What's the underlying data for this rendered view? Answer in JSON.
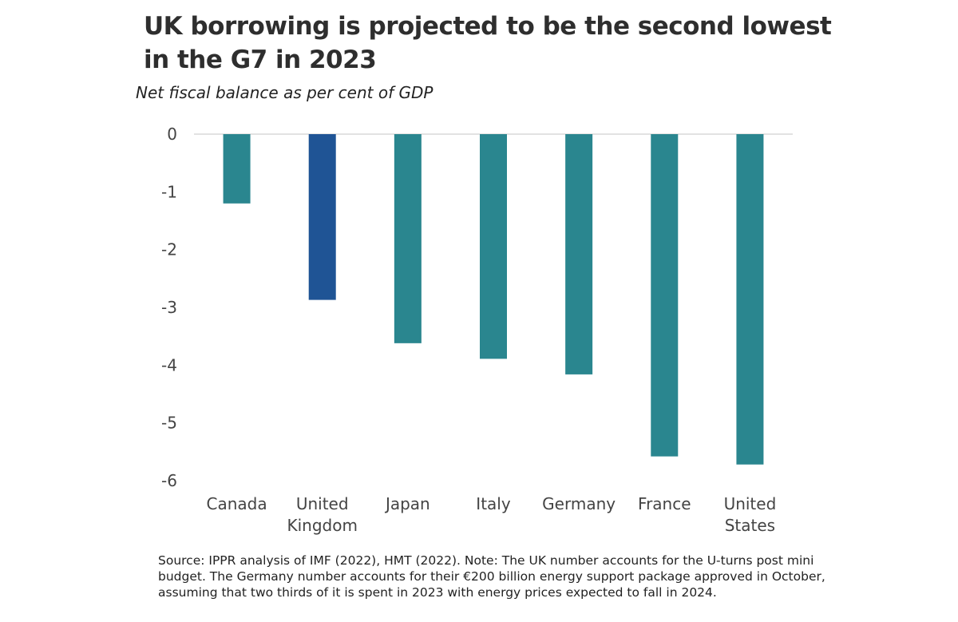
{
  "chart_data": {
    "type": "bar",
    "title": "UK borrowing is projected to be the second lowest in the G7 in 2023",
    "subtitle": "Net fiscal balance as per cent of GDP",
    "categories": [
      [
        "Canada"
      ],
      [
        "United",
        "Kingdom"
      ],
      [
        "Japan"
      ],
      [
        "Italy"
      ],
      [
        "Germany"
      ],
      [
        "France"
      ],
      [
        "United",
        "States"
      ]
    ],
    "values": [
      -1.2,
      -2.87,
      -3.62,
      -3.89,
      -4.16,
      -5.58,
      -5.72
    ],
    "highlight_index": 1,
    "bar_color": "#2a868f",
    "highlight_color": "#1f5495",
    "ylim": [
      -6,
      0
    ],
    "yticks": [
      0,
      -1,
      -2,
      -3,
      -4,
      -5,
      -6
    ],
    "xlabel": "",
    "ylabel": "",
    "grid": false,
    "source": "Source: IPPR analysis of IMF (2022), HMT (2022). Note: The UK number accounts for the U-turns post mini budget. The Germany number accounts for their €200 billion energy support package approved in October, assuming that two thirds of it is spent in 2023 with energy prices expected to fall in 2024."
  }
}
